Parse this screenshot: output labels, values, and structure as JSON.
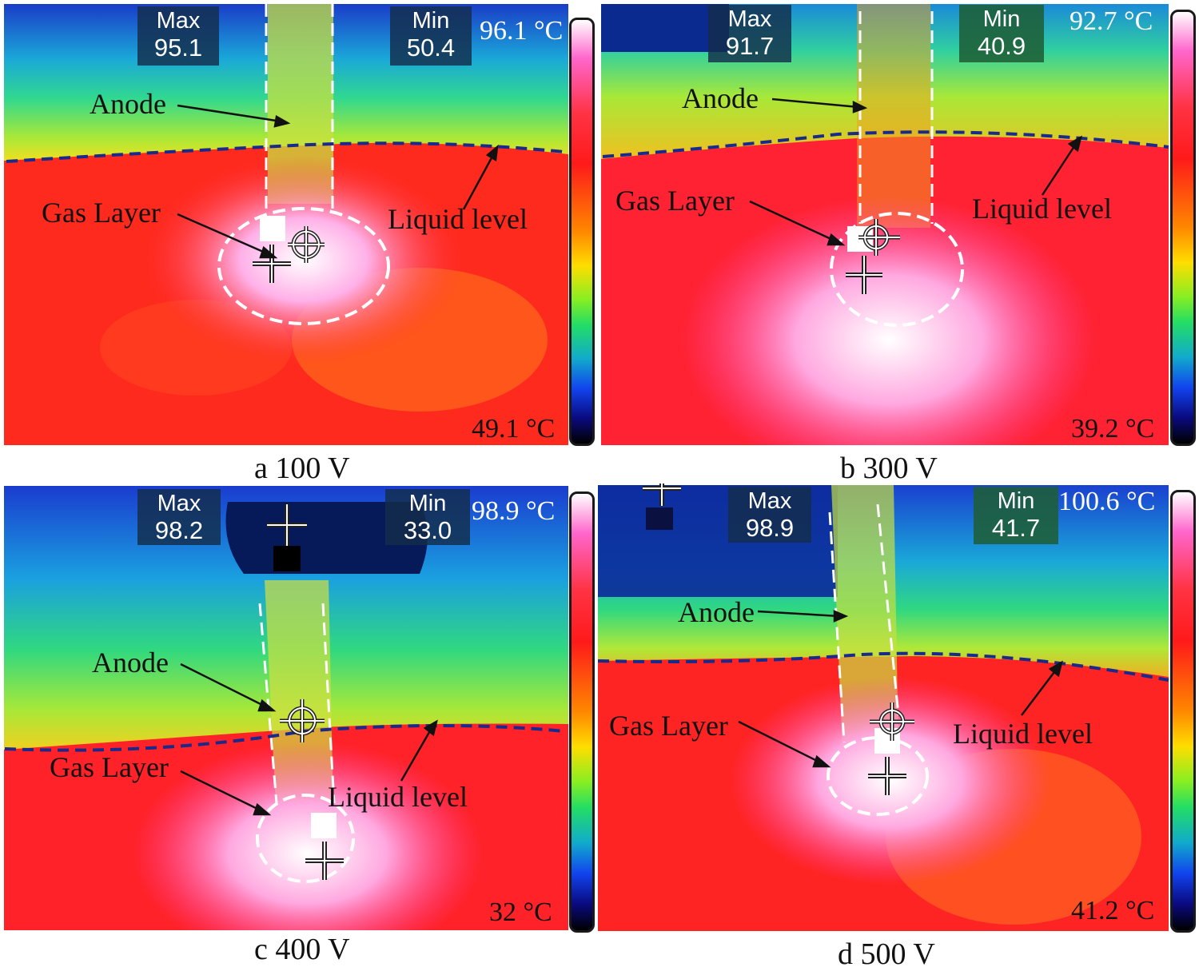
{
  "panels": [
    {
      "id": "a",
      "caption": "a  100 V",
      "max_label": "Max",
      "max_value": "95.1",
      "min_label": "Min",
      "min_value": "50.4",
      "range_top": "96.1 °C",
      "range_bottom": "49.1 °C",
      "anode": "Anode",
      "gas_layer": "Gas Layer",
      "liquid_level": "Liquid level"
    },
    {
      "id": "b",
      "caption": "b  300 V",
      "max_label": "Max",
      "max_value": "91.7",
      "min_label": "Min",
      "min_value": "40.9",
      "range_top": "92.7 °C",
      "range_bottom": "39.2 °C",
      "anode": "Anode",
      "gas_layer": "Gas Layer",
      "liquid_level": "Liquid level"
    },
    {
      "id": "c",
      "caption": "c  400 V",
      "max_label": "Max",
      "max_value": "98.2",
      "min_label": "Min",
      "min_value": "33.0",
      "range_top": "98.9 °C",
      "range_bottom": "32 °C",
      "anode": "Anode",
      "gas_layer": "Gas Layer",
      "liquid_level": "Liquid level"
    },
    {
      "id": "d",
      "caption": "d  500 V",
      "max_label": "Max",
      "max_value": "98.9",
      "min_label": "Min",
      "min_value": "41.7",
      "range_top": "100.6 °C",
      "range_bottom": "41.2 °C",
      "anode": "Anode",
      "gas_layer": "Gas Layer",
      "liquid_level": "Liquid level"
    }
  ],
  "colors": {
    "liquid_level_line": "#1a2a8a",
    "dashed_outline": "#ffffff",
    "hot_zone": "#ff80d0",
    "liquid": "#ff2a20",
    "air": "#1e4fd0"
  },
  "icons": [
    "crosshair-cursor-icon",
    "spot-marker-icon",
    "cross-marker-icon"
  ]
}
